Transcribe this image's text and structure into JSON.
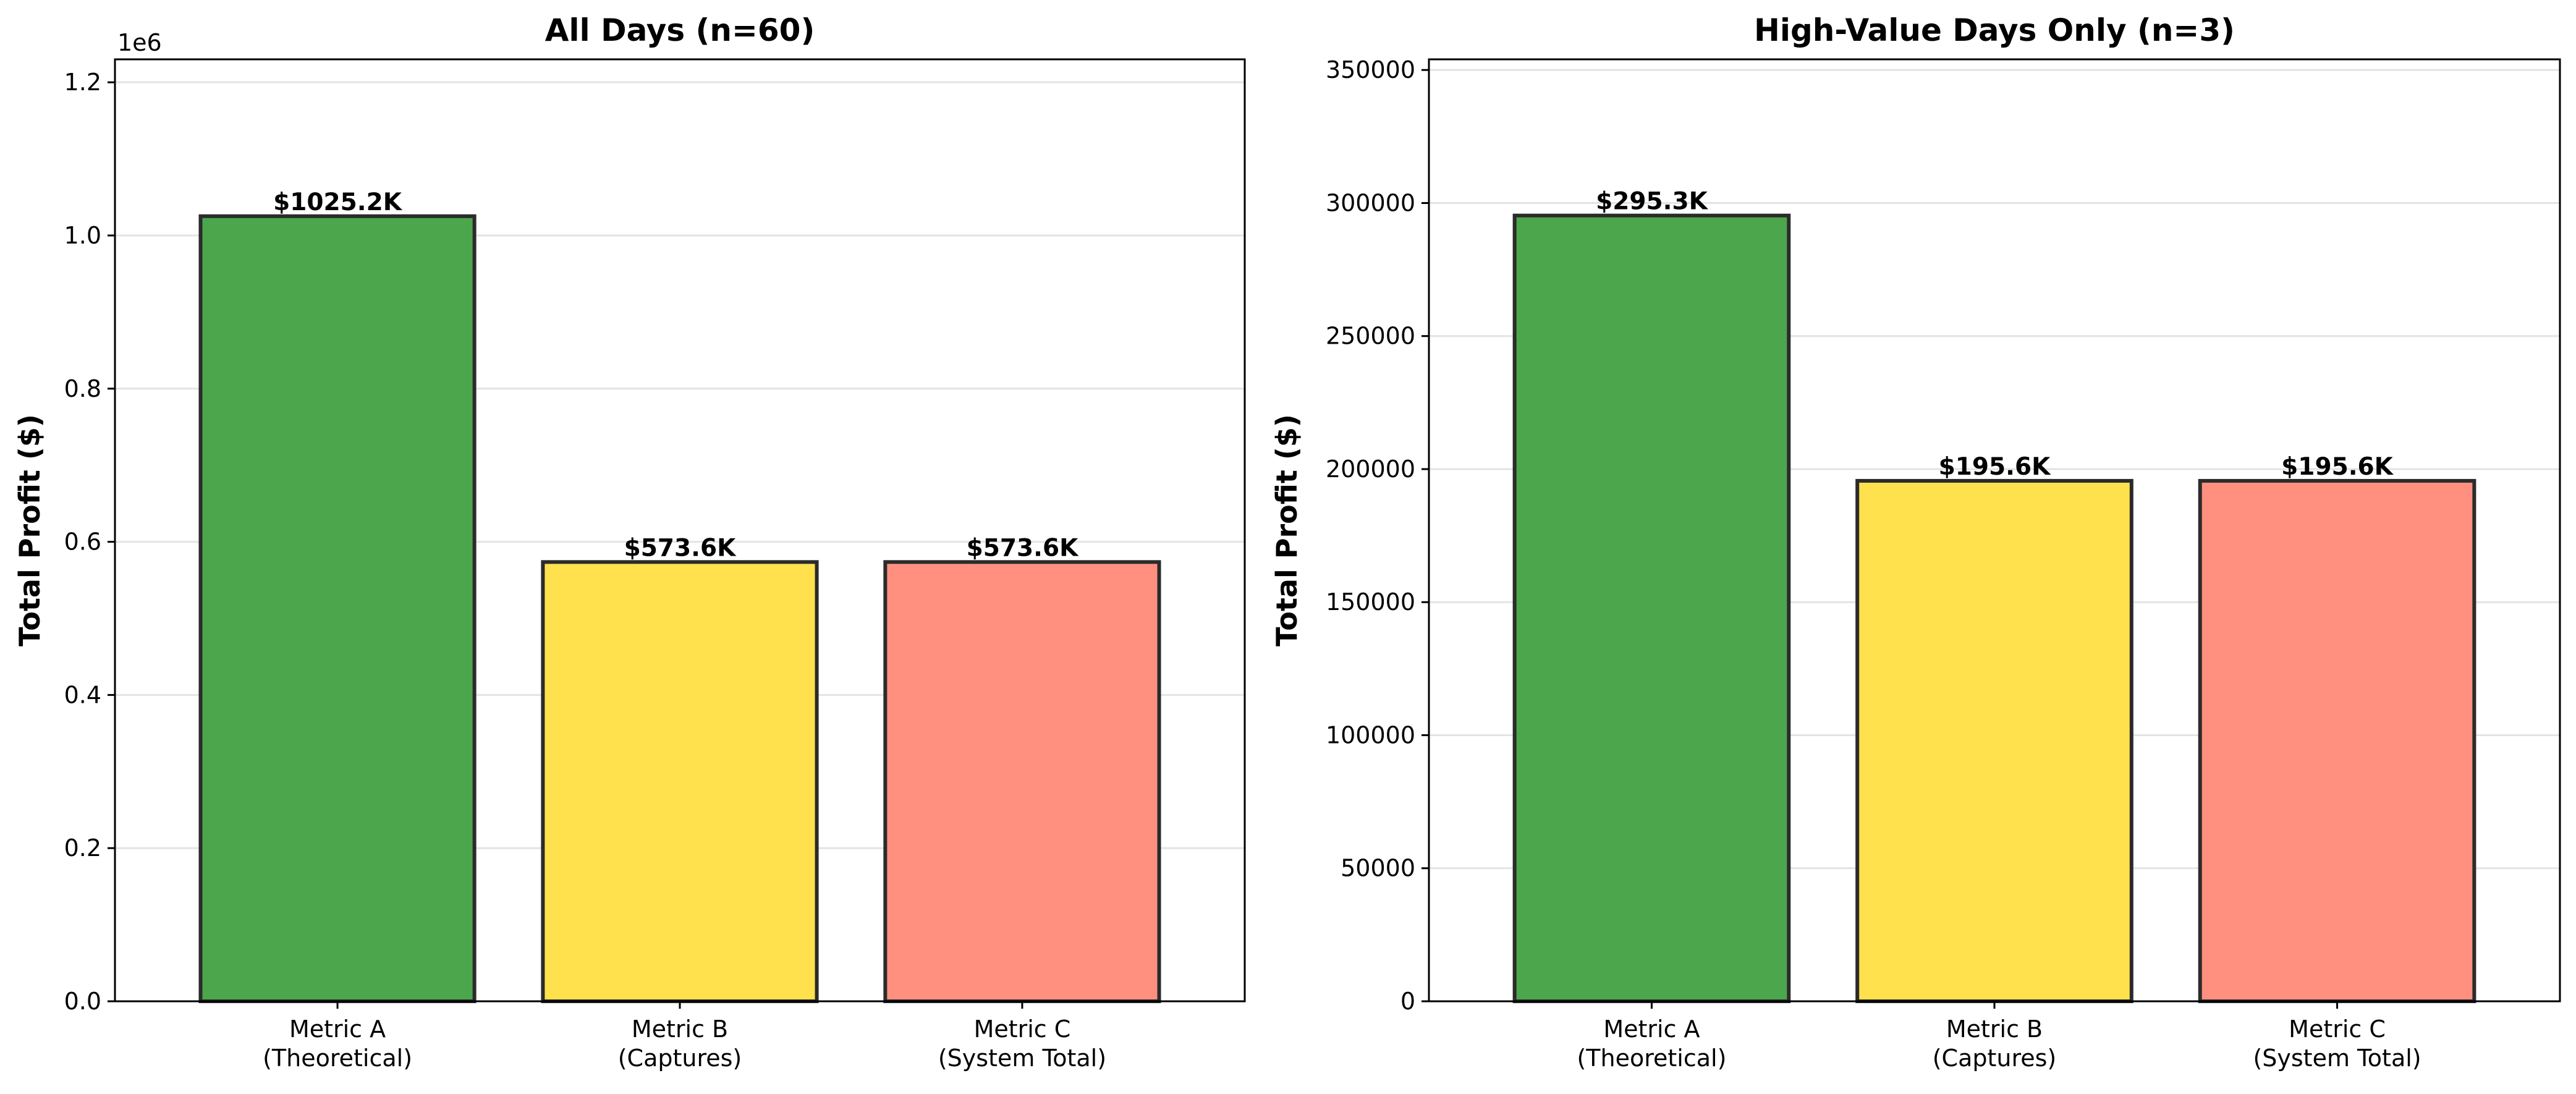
{
  "chart_data": [
    {
      "type": "bar",
      "title": "All Days (n=60)",
      "xlabel": "",
      "ylabel": "Total Profit ($)",
      "axis_offset_label": "1e6",
      "categories": [
        [
          "Metric A",
          "(Theoretical)"
        ],
        [
          "Metric B",
          "(Captures)"
        ],
        [
          "Metric C",
          "(System Total)"
        ]
      ],
      "values": [
        1025200,
        573600,
        573600
      ],
      "value_labels": [
        "$1025.2K",
        "$573.6K",
        "$573.6K"
      ],
      "colors": [
        "#4ca64c",
        "#ffe14d",
        "#ff9080"
      ],
      "edge_color": "#2b2b2b",
      "ylim": [
        0,
        1230000
      ],
      "ytick_values": [
        0,
        200000,
        400000,
        600000,
        800000,
        1000000,
        1200000
      ],
      "yticks": [
        "0.0",
        "0.2",
        "0.4",
        "0.6",
        "0.8",
        "1.0",
        "1.2"
      ],
      "grid": "y",
      "legend": "none"
    },
    {
      "type": "bar",
      "title": "High-Value Days Only (n=3)",
      "xlabel": "",
      "ylabel": "Total Profit ($)",
      "categories": [
        [
          "Metric A",
          "(Theoretical)"
        ],
        [
          "Metric B",
          "(Captures)"
        ],
        [
          "Metric C",
          "(System Total)"
        ]
      ],
      "values": [
        295300,
        195600,
        195600
      ],
      "value_labels": [
        "$295.3K",
        "$195.6K",
        "$195.6K"
      ],
      "colors": [
        "#4ca64c",
        "#ffe14d",
        "#ff9080"
      ],
      "edge_color": "#2b2b2b",
      "ylim": [
        0,
        354000
      ],
      "ytick_values": [
        0,
        50000,
        100000,
        150000,
        200000,
        250000,
        300000,
        350000
      ],
      "yticks": [
        "0",
        "50000",
        "100000",
        "150000",
        "200000",
        "250000",
        "300000",
        "350000"
      ],
      "grid": "y",
      "legend": "none"
    }
  ]
}
